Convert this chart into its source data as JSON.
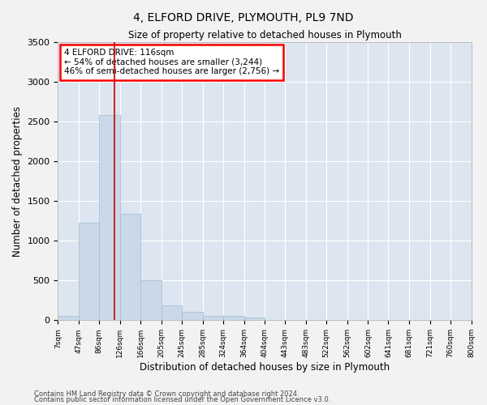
{
  "title": "4, ELFORD DRIVE, PLYMOUTH, PL9 7ND",
  "subtitle": "Size of property relative to detached houses in Plymouth",
  "xlabel": "Distribution of detached houses by size in Plymouth",
  "ylabel": "Number of detached properties",
  "bar_color": "#c9d9ea",
  "bar_edgecolor": "#a8bfd4",
  "background_color": "#dde6f0",
  "fig_background": "#f2f2f2",
  "grid_color": "#ffffff",
  "annotation_text": "4 ELFORD DRIVE: 116sqm\n← 54% of detached houses are smaller (3,244)\n46% of semi-detached houses are larger (2,756) →",
  "property_size": 116,
  "red_line_color": "#cc0000",
  "footer_line1": "Contains HM Land Registry data © Crown copyright and database right 2024.",
  "footer_line2": "Contains public sector information licensed under the Open Government Licence v3.0.",
  "bins": [
    7,
    47,
    86,
    126,
    166,
    205,
    245,
    285,
    324,
    364,
    404,
    443,
    483,
    522,
    562,
    602,
    641,
    681,
    721,
    760,
    800
  ],
  "bin_labels": [
    "7sqm",
    "47sqm",
    "86sqm",
    "126sqm",
    "166sqm",
    "205sqm",
    "245sqm",
    "285sqm",
    "324sqm",
    "364sqm",
    "404sqm",
    "443sqm",
    "483sqm",
    "522sqm",
    "562sqm",
    "602sqm",
    "641sqm",
    "681sqm",
    "721sqm",
    "760sqm",
    "800sqm"
  ],
  "counts": [
    50,
    1230,
    2580,
    1340,
    500,
    190,
    110,
    50,
    50,
    35,
    0,
    0,
    0,
    0,
    0,
    0,
    0,
    0,
    0,
    0
  ],
  "ylim": [
    0,
    3500
  ],
  "xlim_min": 7,
  "xlim_max": 800
}
